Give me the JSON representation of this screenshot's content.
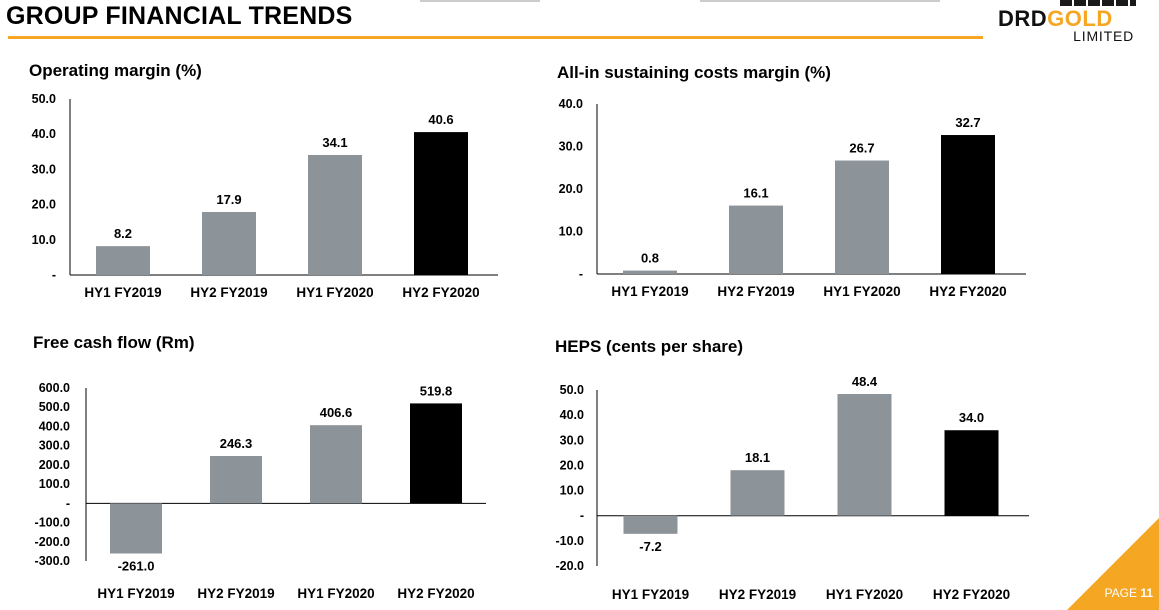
{
  "page": {
    "title": "GROUP FINANCIAL TRENDS",
    "logo_main": "DRD",
    "logo_accent": "GOLD",
    "logo_sub": "LIMITED",
    "page_label": "PAGE",
    "page_number": "11"
  },
  "colors": {
    "accent": "#f5a623",
    "bar_gray": "#8c9399",
    "bar_black": "#000000"
  },
  "chart_data": [
    {
      "id": "operating-margin",
      "type": "bar",
      "title": "Operating margin (%)",
      "categories": [
        "HY1 FY2019",
        "HY2 FY2019",
        "HY1 FY2020",
        "HY2 FY2020"
      ],
      "values": [
        8.2,
        17.9,
        34.1,
        40.6
      ],
      "value_labels": [
        "8.2",
        "17.9",
        "34.1",
        "40.6"
      ],
      "ylim": [
        0,
        50
      ],
      "yticks": [
        0,
        10,
        20,
        30,
        40,
        50
      ],
      "ytick_labels": [
        "-",
        "10.0",
        "20.0",
        "30.0",
        "40.0",
        "50.0"
      ],
      "highlight_index": 3
    },
    {
      "id": "aisc-margin",
      "type": "bar",
      "title": "All-in sustaining costs margin (%)",
      "categories": [
        "HY1 FY2019",
        "HY2 FY2019",
        "HY1 FY2020",
        "HY2 FY2020"
      ],
      "values": [
        0.8,
        16.1,
        26.7,
        32.7
      ],
      "value_labels": [
        "0.8",
        "16.1",
        "26.7",
        "32.7"
      ],
      "ylim": [
        0,
        40
      ],
      "yticks": [
        0,
        10,
        20,
        30,
        40
      ],
      "ytick_labels": [
        "-",
        "10.0",
        "20.0",
        "30.0",
        "40.0"
      ],
      "highlight_index": 3
    },
    {
      "id": "free-cash-flow",
      "type": "bar",
      "title": "Free cash flow (Rm)",
      "categories": [
        "HY1 FY2019",
        "HY2 FY2019",
        "HY1 FY2020",
        "HY2 FY2020"
      ],
      "values": [
        -261.0,
        246.3,
        406.6,
        519.8
      ],
      "value_labels": [
        "-261.0",
        "246.3",
        "406.6",
        "519.8"
      ],
      "ylim": [
        -300,
        600
      ],
      "yticks": [
        -300,
        -200,
        -100,
        0,
        100,
        200,
        300,
        400,
        500,
        600
      ],
      "ytick_labels": [
        "-300.0",
        "-200.0",
        "-100.0",
        "-",
        "100.0",
        "200.0",
        "300.0",
        "400.0",
        "500.0",
        "600.0"
      ],
      "highlight_index": 3
    },
    {
      "id": "heps",
      "type": "bar",
      "title": "HEPS (cents per share)",
      "categories": [
        "HY1 FY2019",
        "HY2 FY2019",
        "HY1 FY2020",
        "HY2 FY2020"
      ],
      "values": [
        -7.2,
        18.1,
        48.4,
        34.0
      ],
      "value_labels": [
        "-7.2",
        "18.1",
        "48.4",
        "34.0"
      ],
      "ylim": [
        -20,
        50
      ],
      "yticks": [
        -20,
        -10,
        0,
        10,
        20,
        30,
        40,
        50
      ],
      "ytick_labels": [
        "-20.0",
        "-10.0",
        "-",
        "10.0",
        "20.0",
        "30.0",
        "40.0",
        "50.0"
      ],
      "highlight_index": 3
    }
  ]
}
